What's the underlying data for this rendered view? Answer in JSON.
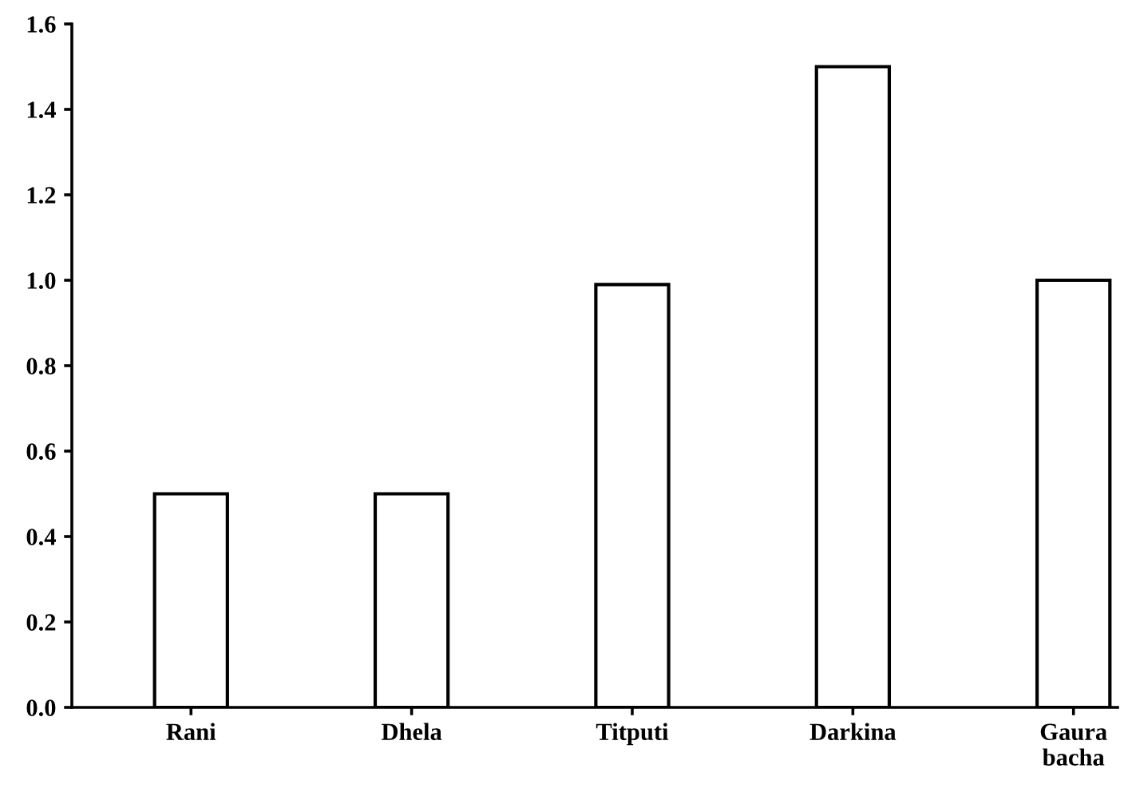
{
  "chart_data": {
    "type": "bar",
    "categories": [
      "Rani",
      "Dhela",
      "Titputi",
      "Darkina",
      "Gaura\nbacha"
    ],
    "values": [
      0.5,
      0.5,
      0.99,
      1.5,
      1.0
    ],
    "color": "#ffffff",
    "ylim": [
      0,
      1.6
    ],
    "yticks": [
      {
        "value": 0,
        "label": "0.0"
      },
      {
        "value": 0.2,
        "label": "0.2"
      },
      {
        "value": 0.4,
        "label": "0.4"
      },
      {
        "value": 0.6,
        "label": "0.6"
      },
      {
        "value": 0.8,
        "label": "0.8"
      },
      {
        "value": 1.0,
        "label": "1.0"
      },
      {
        "value": 1.2,
        "label": "1.2"
      },
      {
        "value": 1.4,
        "label": "1.4"
      },
      {
        "value": 1.6,
        "label": "1.6"
      }
    ],
    "grid": false,
    "legend": false
  }
}
